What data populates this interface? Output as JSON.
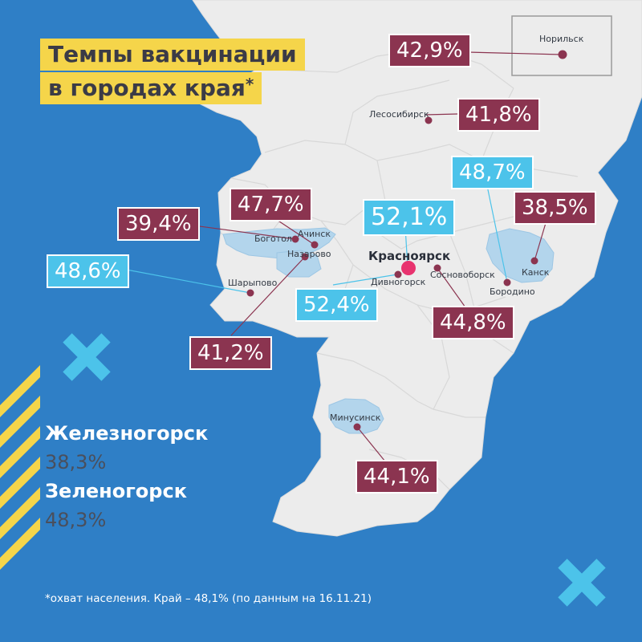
{
  "title": {
    "line1": "Темпы вакцинации",
    "line2": "в городах края",
    "asterisk": "*"
  },
  "cities": [
    {
      "id": "norilsk",
      "name": "Норильск",
      "value": "42,9%",
      "style": "red"
    },
    {
      "id": "lesosibirsk",
      "name": "Лесосибирск",
      "value": "41,8%",
      "style": "red"
    },
    {
      "id": "bogotol",
      "name": "Боготол",
      "value": "39,4%",
      "style": "red"
    },
    {
      "id": "achinsk",
      "name": "Ачинск",
      "value": "47,7%",
      "style": "red"
    },
    {
      "id": "nazarovo",
      "name": "Назарово",
      "value": "41,2%",
      "style": "red"
    },
    {
      "id": "sharypovo",
      "name": "Шарыпово",
      "value": "48,6%",
      "style": "blue"
    },
    {
      "id": "krasnoyarsk",
      "name": "Красноярск",
      "value": "52,1%",
      "style": "blue"
    },
    {
      "id": "divnogorsk",
      "name": "Дивногорск",
      "value": "52,4%",
      "style": "blue"
    },
    {
      "id": "sosnovoborsk",
      "name": "Сосновоборск",
      "value": "44,8%",
      "style": "red"
    },
    {
      "id": "borodino",
      "name": "Бородино",
      "value": "48,7%",
      "style": "blue"
    },
    {
      "id": "kansk",
      "name": "Канск",
      "value": "38,5%",
      "style": "red"
    },
    {
      "id": "minusinsk",
      "name": "Минусинск",
      "value": "44,1%",
      "style": "red"
    }
  ],
  "side_cities": [
    {
      "name": "Железногорск",
      "value": "38,3%"
    },
    {
      "name": "Зеленогорск",
      "value": "48,3%"
    }
  ],
  "footnote": "*охват населения. Край – 48,1%  (по данным на 16.11.21)",
  "colors": {
    "background": "#2f7fc6",
    "land": "#ececec",
    "highlight": "#b3d5ec",
    "accent_red": "#8b3450",
    "accent_blue": "#4cc3ea",
    "title_bg": "#f5d54a",
    "capital_dot": "#e8336f"
  }
}
